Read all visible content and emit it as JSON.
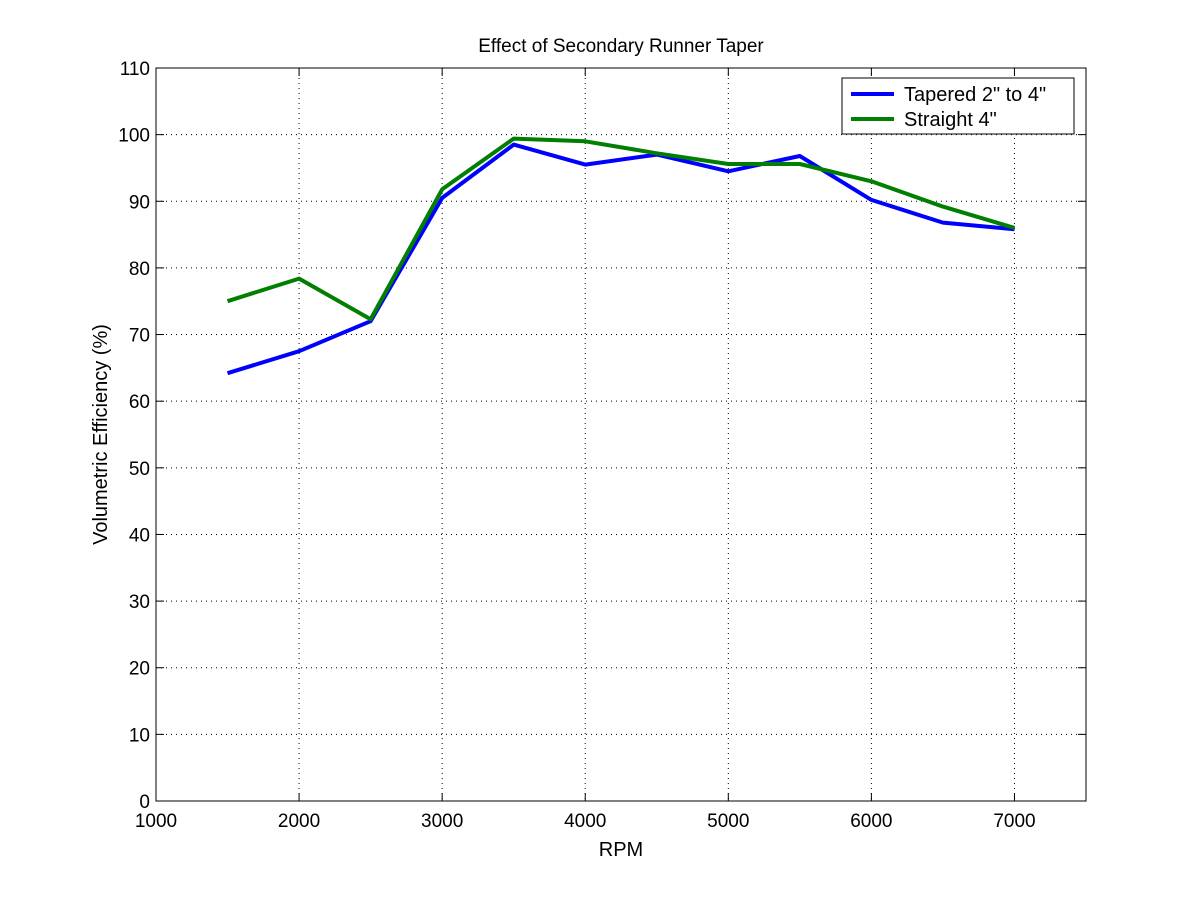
{
  "chart_data": {
    "type": "line",
    "title": "Effect of Secondary Runner Taper",
    "xlabel": "RPM",
    "ylabel": "Volumetric Efficiency (%)",
    "xlim": [
      1000,
      7500
    ],
    "ylim": [
      0,
      110
    ],
    "xticks": [
      1000,
      2000,
      3000,
      4000,
      5000,
      6000,
      7000
    ],
    "yticks": [
      0,
      10,
      20,
      30,
      40,
      50,
      60,
      70,
      80,
      90,
      100,
      110
    ],
    "grid": true,
    "legend_position": "top-right",
    "x": [
      1500,
      2000,
      2500,
      3000,
      3500,
      4000,
      4500,
      5000,
      5500,
      6000,
      6500,
      7000
    ],
    "series": [
      {
        "name": "Tapered 2\" to 4\"",
        "color": "#0000ff",
        "values": [
          64.2,
          67.5,
          72.0,
          90.5,
          98.5,
          95.5,
          97.0,
          94.5,
          96.8,
          90.2,
          86.8,
          85.8
        ]
      },
      {
        "name": "Straight 4\"",
        "color": "#007f00",
        "values": [
          75.0,
          78.4,
          72.3,
          91.8,
          99.4,
          99.0,
          97.2,
          95.6,
          95.6,
          93.0,
          89.2,
          86.0
        ]
      }
    ]
  }
}
